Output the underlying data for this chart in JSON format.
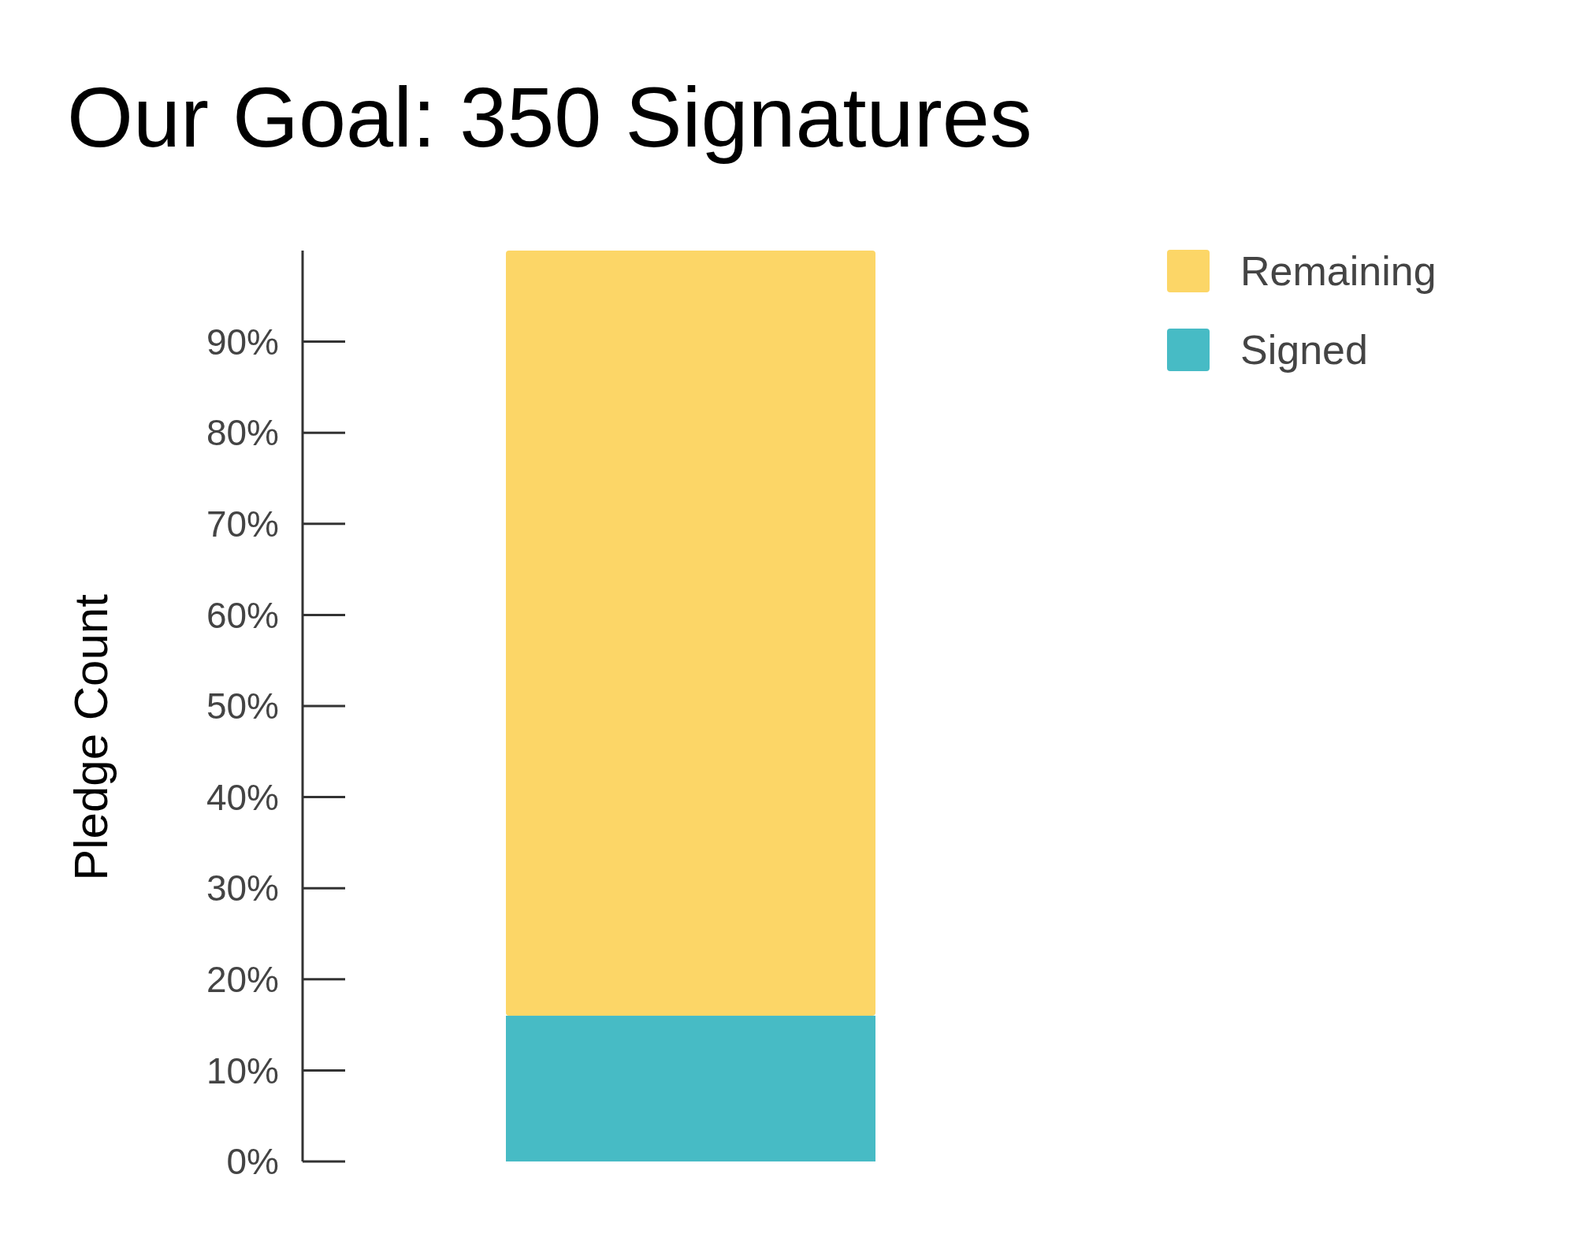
{
  "chart_data": {
    "type": "bar",
    "title": "Our Goal: 350 Signatures",
    "ylabel": "Pledge Count",
    "categories": [
      null
    ],
    "stacked": true,
    "series": [
      {
        "name": "Signed",
        "color": "#47bbc5",
        "values": [
          16
        ]
      },
      {
        "name": "Remaining",
        "color": "#fcd667",
        "values": [
          84
        ]
      }
    ],
    "ylim": [
      0,
      100
    ],
    "yticks": [
      {
        "value": 0,
        "label": "0%"
      },
      {
        "value": 10,
        "label": "10%"
      },
      {
        "value": 20,
        "label": "20%"
      },
      {
        "value": 30,
        "label": "30%"
      },
      {
        "value": 40,
        "label": "40%"
      },
      {
        "value": 50,
        "label": "50%"
      },
      {
        "value": 60,
        "label": "60%"
      },
      {
        "value": 70,
        "label": "70%"
      },
      {
        "value": 80,
        "label": "80%"
      },
      {
        "value": 90,
        "label": "90%"
      }
    ],
    "legend": "top right",
    "grid": false
  }
}
